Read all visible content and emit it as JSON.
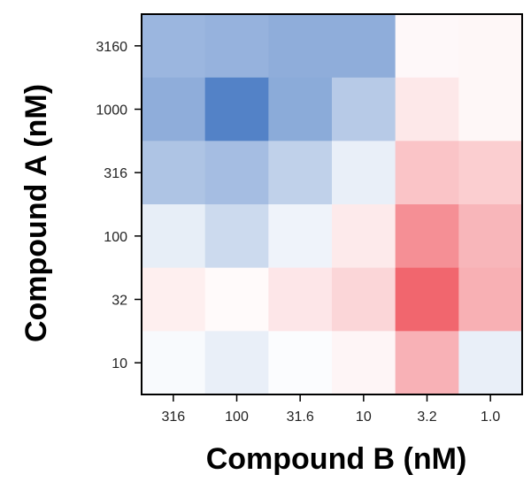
{
  "chart_data": {
    "type": "heatmap",
    "title": "",
    "xlabel": "Compound B (nM)",
    "ylabel": "Compound A (nM)",
    "x_categories": [
      "316",
      "100",
      "31.6",
      "10",
      "3.2",
      "1.0"
    ],
    "y_categories": [
      "3160",
      "1000",
      "316",
      "100",
      "32",
      "10"
    ],
    "colormap": {
      "negative": "#4a7bc4",
      "zero": "#ffffff",
      "positive": "#f05a63"
    },
    "value_range": [
      -1,
      1
    ],
    "values": [
      [
        -0.55,
        -0.58,
        -0.62,
        -0.62,
        0.04,
        0.05
      ],
      [
        -0.62,
        -0.95,
        -0.64,
        -0.4,
        0.14,
        0.05
      ],
      [
        -0.45,
        -0.5,
        -0.35,
        -0.12,
        0.36,
        0.3
      ],
      [
        -0.13,
        -0.28,
        -0.09,
        0.13,
        0.68,
        0.44
      ],
      [
        0.1,
        0.03,
        0.15,
        0.25,
        0.93,
        0.48
      ],
      [
        -0.04,
        -0.12,
        -0.02,
        0.06,
        0.47,
        -0.12
      ]
    ]
  }
}
